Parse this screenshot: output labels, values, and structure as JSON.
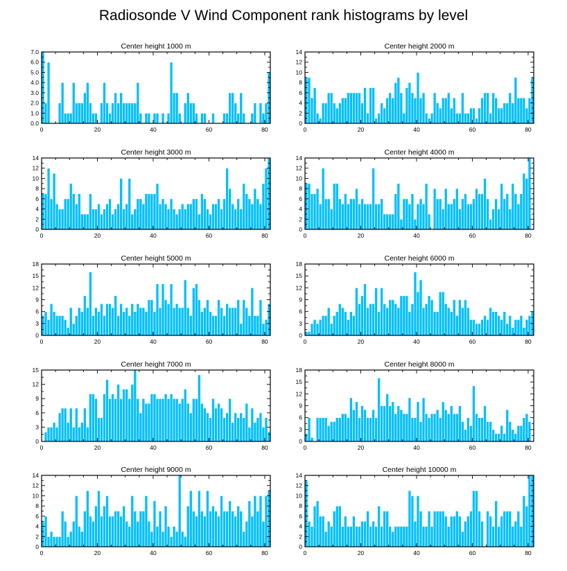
{
  "chart_data": {
    "type": "bar",
    "title": "Radiosonde V Wind Component rank histograms by level",
    "bar_color": "#00bfff",
    "panels": [
      {
        "title": "Center height 1000 m",
        "xlim": [
          0,
          82
        ],
        "ylim": [
          0,
          7
        ],
        "xticks": [
          0,
          20,
          40,
          60,
          80
        ],
        "xticklabels": [
          "0",
          "20",
          "40",
          "60",
          "80"
        ],
        "yticks": [
          0,
          1,
          2,
          3,
          4,
          5,
          6,
          7
        ],
        "yticklabels": [
          "0.0",
          "1.0",
          "2.0",
          "3.0",
          "4.0",
          "5.0",
          "6.0",
          "7.0"
        ],
        "values": [
          7,
          2,
          6,
          0,
          0,
          0,
          2,
          4,
          1,
          1,
          1,
          4,
          2,
          2,
          2,
          3,
          4,
          2,
          1,
          1,
          0,
          2,
          4,
          2,
          1,
          2,
          3,
          2,
          3,
          2,
          2,
          2,
          2,
          2,
          4,
          1,
          0,
          1,
          1,
          0,
          1,
          1,
          0,
          1,
          0,
          1,
          6,
          3,
          3,
          1,
          0,
          2,
          3,
          2,
          2,
          1,
          0,
          1,
          1,
          0,
          0,
          1,
          0,
          0,
          0,
          1,
          1,
          3,
          3,
          2,
          1,
          3,
          1,
          0,
          0,
          1,
          2,
          0,
          2,
          1,
          2,
          5
        ]
      },
      {
        "title": "Center height 2000 m",
        "xlim": [
          0,
          82
        ],
        "ylim": [
          0,
          14
        ],
        "xticks": [
          0,
          20,
          40,
          60,
          80
        ],
        "xticklabels": [
          "0",
          "20",
          "40",
          "60",
          "80"
        ],
        "yticks": [
          0,
          2,
          4,
          6,
          8,
          10,
          12,
          14
        ],
        "yticklabels": [
          "0",
          "2",
          "4",
          "6",
          "8",
          "10",
          "12",
          "14"
        ],
        "values": [
          9,
          9,
          5,
          7,
          2,
          1,
          4,
          4,
          6,
          6,
          4,
          3,
          4,
          5,
          5,
          6,
          6,
          6,
          6,
          6,
          4,
          7,
          2,
          7,
          7,
          1,
          2,
          4,
          3,
          5,
          6,
          5,
          8,
          9,
          6,
          2,
          7,
          8,
          6,
          5,
          10,
          5,
          6,
          2,
          1,
          2,
          6,
          4,
          3,
          5,
          5,
          6,
          3,
          5,
          2,
          2,
          6,
          2,
          2,
          3,
          3,
          1,
          3,
          5,
          6,
          6,
          2,
          6,
          5,
          3,
          3,
          4,
          4,
          6,
          4,
          9,
          5,
          5,
          5,
          3,
          5,
          9
        ]
      },
      {
        "title": "Center height 3000 m",
        "xlim": [
          0,
          82
        ],
        "ylim": [
          0,
          14
        ],
        "xticks": [
          0,
          20,
          40,
          60,
          80
        ],
        "xticklabels": [
          "0",
          "20",
          "40",
          "60",
          "80"
        ],
        "yticks": [
          0,
          2,
          4,
          6,
          8,
          10,
          12,
          14
        ],
        "yticklabels": [
          "0",
          "2",
          "4",
          "6",
          "8",
          "10",
          "12",
          "14"
        ],
        "values": [
          7,
          7,
          12,
          6,
          11,
          5,
          4,
          4,
          6,
          6,
          9,
          7,
          5,
          7,
          3,
          3,
          3,
          7,
          4,
          4,
          5,
          3,
          4,
          5,
          6,
          3,
          4,
          5,
          10,
          4,
          5,
          10,
          3,
          4,
          6,
          6,
          5,
          7,
          7,
          7,
          7,
          9,
          5,
          6,
          5,
          4,
          6,
          4,
          3,
          4,
          5,
          4,
          5,
          5,
          6,
          6,
          3,
          7,
          6,
          4,
          3,
          5,
          5,
          6,
          4,
          6,
          12,
          8,
          5,
          4,
          6,
          4,
          9,
          7,
          6,
          5,
          8,
          6,
          5,
          9,
          12,
          14
        ]
      },
      {
        "title": "Center height 4000 m",
        "xlim": [
          0,
          82
        ],
        "ylim": [
          0,
          14
        ],
        "xticks": [
          0,
          20,
          40,
          60,
          80
        ],
        "xticklabels": [
          "0",
          "20",
          "40",
          "60",
          "80"
        ],
        "yticks": [
          0,
          2,
          4,
          6,
          8,
          10,
          12,
          14
        ],
        "yticklabels": [
          "0",
          "2",
          "4",
          "6",
          "8",
          "10",
          "12",
          "14"
        ],
        "values": [
          9,
          9,
          7,
          7,
          8,
          5,
          12,
          6,
          6,
          4,
          9,
          9,
          6,
          5,
          7,
          5,
          6,
          6,
          8,
          5,
          6,
          5,
          5,
          5,
          12,
          5,
          5,
          6,
          3,
          3,
          3,
          3,
          7,
          9,
          2,
          6,
          6,
          5,
          7,
          2,
          5,
          6,
          5,
          9,
          3,
          0,
          8,
          6,
          6,
          4,
          8,
          5,
          5,
          6,
          8,
          4,
          6,
          7,
          5,
          5,
          6,
          8,
          7,
          7,
          10,
          6,
          2,
          4,
          6,
          4,
          9,
          6,
          7,
          4,
          9,
          7,
          5,
          7,
          11,
          10,
          14
        ]
      },
      {
        "title": "Center height 5000 m",
        "xlim": [
          0,
          82
        ],
        "ylim": [
          0,
          18
        ],
        "xticks": [
          0,
          20,
          40,
          60,
          80
        ],
        "xticklabels": [
          "0",
          "20",
          "40",
          "60",
          "80"
        ],
        "yticks": [
          0,
          3,
          6,
          9,
          12,
          15,
          18
        ],
        "yticklabels": [
          "0",
          "3",
          "6",
          "9",
          "12",
          "15",
          "18"
        ],
        "values": [
          5,
          6,
          4,
          8,
          6,
          5,
          5,
          5,
          4,
          2,
          7,
          3,
          5,
          7,
          6,
          10,
          7,
          16,
          5,
          7,
          6,
          8,
          5,
          8,
          8,
          7,
          10,
          5,
          8,
          6,
          7,
          5,
          8,
          6,
          8,
          7,
          7,
          6,
          9,
          9,
          6,
          13,
          7,
          13,
          9,
          8,
          13,
          7,
          8,
          7,
          7,
          14,
          7,
          5,
          12,
          13,
          9,
          6,
          7,
          9,
          6,
          5,
          5,
          9,
          7,
          5,
          8,
          7,
          7,
          7,
          9,
          3,
          9,
          7,
          5,
          12,
          5,
          5,
          9,
          3,
          4,
          8
        ]
      },
      {
        "title": "Center height 6000 m",
        "xlim": [
          0,
          82
        ],
        "ylim": [
          0,
          18
        ],
        "xticks": [
          0,
          20,
          40,
          60,
          80
        ],
        "xticklabels": [
          "0",
          "20",
          "40",
          "60",
          "80"
        ],
        "yticks": [
          0,
          3,
          6,
          9,
          12,
          15,
          18
        ],
        "yticklabels": [
          "0",
          "3",
          "6",
          "9",
          "12",
          "15",
          "18"
        ],
        "values": [
          1,
          1,
          3,
          4,
          3,
          4,
          5,
          5,
          7,
          3,
          5,
          6,
          8,
          7,
          6,
          4,
          6,
          5,
          12,
          8,
          10,
          13,
          7,
          8,
          8,
          12,
          6,
          12,
          8,
          7,
          9,
          9,
          8,
          7,
          10,
          10,
          10,
          6,
          8,
          16,
          11,
          14,
          7,
          8,
          10,
          9,
          6,
          6,
          11,
          11,
          8,
          7,
          6,
          9,
          5,
          9,
          7,
          9,
          7,
          4,
          4,
          3,
          3,
          4,
          5,
          4,
          7,
          6,
          6,
          5,
          4,
          6,
          3,
          5,
          2,
          4,
          4,
          5,
          2,
          4,
          5,
          6
        ]
      },
      {
        "title": "Center height 7000 m",
        "xlim": [
          0,
          82
        ],
        "ylim": [
          0,
          15
        ],
        "xticks": [
          0,
          20,
          40,
          60,
          80
        ],
        "xticklabels": [
          "0",
          "20",
          "40",
          "60",
          "80"
        ],
        "yticks": [
          0,
          3,
          6,
          9,
          12,
          15
        ],
        "yticklabels": [
          "0",
          "3",
          "6",
          "9",
          "12",
          "15"
        ],
        "values": [
          0,
          2,
          3,
          3,
          4,
          3,
          6,
          7,
          7,
          4,
          7,
          3,
          7,
          3,
          4,
          7,
          3,
          10,
          10,
          9,
          5,
          5,
          10,
          13,
          9,
          10,
          9,
          12,
          9,
          11,
          11,
          9,
          12,
          15,
          9,
          6,
          9,
          8,
          8,
          10,
          10,
          9,
          9,
          9,
          10,
          9,
          10,
          9,
          9,
          8,
          9,
          11,
          8,
          6,
          9,
          9,
          14,
          8,
          7,
          6,
          5,
          9,
          7,
          8,
          7,
          5,
          6,
          9,
          4,
          6,
          5,
          6,
          5,
          8,
          3,
          7,
          4,
          5,
          6,
          3,
          5,
          2
        ]
      },
      {
        "title": "Center height 8000 m",
        "xlim": [
          0,
          82
        ],
        "ylim": [
          0,
          18
        ],
        "xticks": [
          0,
          20,
          40,
          60,
          80
        ],
        "xticklabels": [
          "0",
          "20",
          "40",
          "60",
          "80"
        ],
        "yticks": [
          0,
          3,
          6,
          9,
          12,
          15,
          18
        ],
        "yticklabels": [
          "0",
          "3",
          "6",
          "9",
          "12",
          "15",
          "18"
        ],
        "values": [
          2,
          6,
          1,
          0,
          6,
          6,
          6,
          6,
          4,
          5,
          5,
          6,
          6,
          7,
          7,
          6,
          11,
          8,
          10,
          6,
          9,
          8,
          6,
          6,
          8,
          6,
          16,
          9,
          9,
          12,
          9,
          10,
          7,
          9,
          8,
          7,
          7,
          11,
          6,
          6,
          10,
          5,
          11,
          7,
          6,
          7,
          7,
          8,
          6,
          10,
          8,
          7,
          9,
          7,
          7,
          9,
          5,
          3,
          6,
          4,
          14,
          7,
          6,
          6,
          9,
          5,
          5,
          3,
          2,
          2,
          4,
          2,
          8,
          5,
          3,
          2,
          4,
          4,
          6,
          7,
          5,
          0
        ]
      },
      {
        "title": "Center height 9000 m",
        "xlim": [
          0,
          82
        ],
        "ylim": [
          0,
          14
        ],
        "xticks": [
          0,
          20,
          40,
          60,
          80
        ],
        "xticklabels": [
          "0",
          "20",
          "40",
          "60",
          "80"
        ],
        "yticks": [
          0,
          2,
          4,
          6,
          8,
          10,
          12,
          14
        ],
        "yticklabels": [
          "0",
          "2",
          "4",
          "6",
          "8",
          "10",
          "12",
          "14"
        ],
        "values": [
          5,
          6,
          2,
          3,
          2,
          2,
          2,
          7,
          5,
          2,
          3,
          5,
          10,
          4,
          3,
          7,
          11,
          6,
          5,
          8,
          11,
          6,
          8,
          10,
          6,
          6,
          7,
          7,
          6,
          8,
          5,
          4,
          10,
          7,
          5,
          7,
          7,
          10,
          5,
          3,
          9,
          4,
          7,
          3,
          8,
          4,
          2,
          4,
          3,
          14,
          3,
          2,
          8,
          11,
          7,
          6,
          11,
          7,
          6,
          11,
          7,
          8,
          7,
          6,
          10,
          7,
          7,
          9,
          7,
          6,
          8,
          7,
          3,
          5,
          9,
          6,
          10,
          7,
          10,
          5,
          10,
          11
        ]
      },
      {
        "title": "Center height 10000 m",
        "xlim": [
          0,
          82
        ],
        "ylim": [
          0,
          14
        ],
        "xticks": [
          0,
          20,
          40,
          60,
          80
        ],
        "xticklabels": [
          "0",
          "20",
          "40",
          "60",
          "80"
        ],
        "yticks": [
          0,
          2,
          4,
          6,
          8,
          10,
          12,
          14
        ],
        "yticklabels": [
          "0",
          "2",
          "4",
          "6",
          "8",
          "10",
          "12",
          "14"
        ],
        "values": [
          13,
          5,
          4,
          8,
          9,
          6,
          6,
          3,
          5,
          4,
          7,
          8,
          8,
          4,
          6,
          4,
          4,
          6,
          4,
          4,
          5,
          5,
          7,
          4,
          5,
          4,
          8,
          4,
          7,
          7,
          4,
          3,
          4,
          4,
          4,
          4,
          4,
          11,
          10,
          5,
          10,
          7,
          4,
          4,
          7,
          4,
          7,
          7,
          7,
          7,
          6,
          4,
          6,
          6,
          7,
          6,
          3,
          5,
          6,
          7,
          11,
          11,
          7,
          5,
          0,
          7,
          6,
          4,
          9,
          4,
          6,
          7,
          7,
          7,
          4,
          5,
          7,
          4,
          10,
          8,
          14,
          14
        ]
      }
    ]
  }
}
